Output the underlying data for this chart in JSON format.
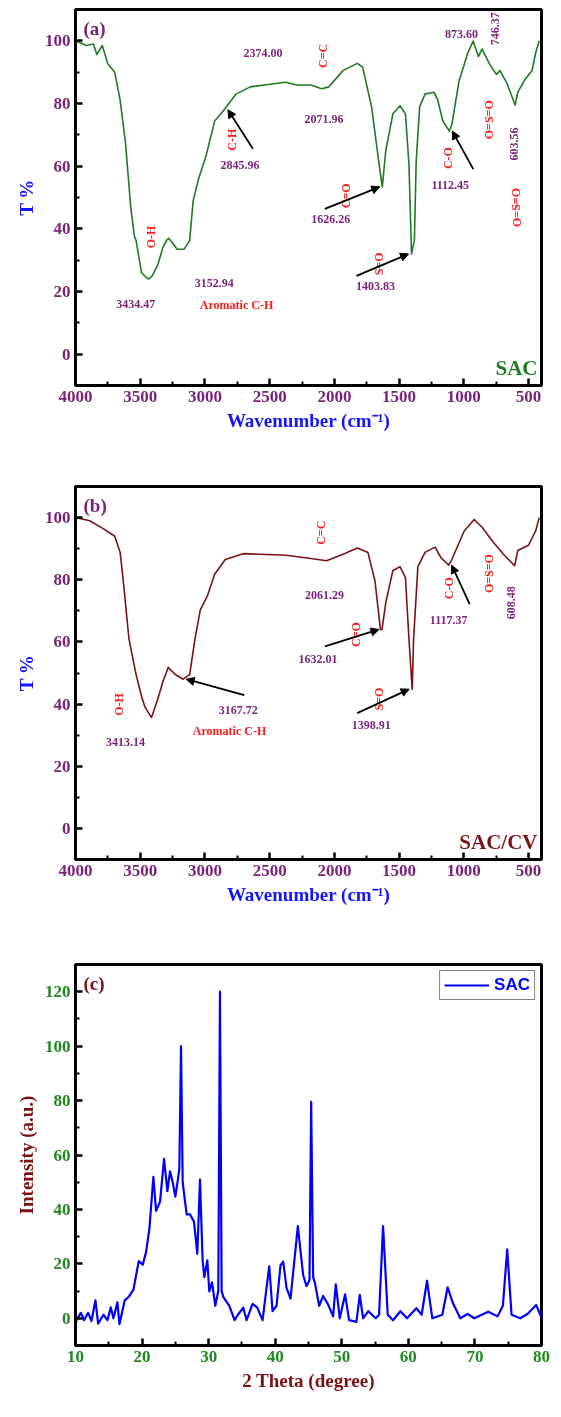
{
  "chart_data": [
    {
      "type": "line",
      "title": "(a)",
      "xlabel": "Wavenumber (cm⁻¹)",
      "ylabel": "T %",
      "xlim": [
        4000,
        400
      ],
      "ylim": [
        -10,
        110
      ],
      "xticks": [
        4000,
        3500,
        3000,
        2500,
        2000,
        1500,
        1000,
        500
      ],
      "yticks": [
        0,
        20,
        40,
        60,
        80,
        100
      ],
      "series": [
        {
          "name": "SAC",
          "color": "#1e7b1e",
          "x": [
            4000,
            3917,
            3862,
            3835,
            3793,
            3752,
            3697,
            3655,
            3614,
            3573,
            3545,
            3532,
            3490,
            3449,
            3434,
            3408,
            3366,
            3325,
            3297,
            3280,
            3256,
            3215,
            3160,
            3118,
            3091,
            3049,
            2994,
            2925,
            2856,
            2760,
            2650,
            2484,
            2374,
            2292,
            2181,
            2099,
            2044,
            1933,
            1823,
            1782,
            1713,
            1658,
            1630,
            1603,
            1548,
            1493,
            1451,
            1424,
            1404,
            1382,
            1368,
            1341,
            1300,
            1231,
            1203,
            1162,
            1112,
            1093,
            1038,
            969,
            928,
            887,
            859,
            804,
            749,
            721,
            666,
            604,
            583,
            528,
            473,
            445,
            418
          ],
          "values": [
            100,
            98.5,
            99,
            95.6,
            98.5,
            92.8,
            90,
            81,
            67.5,
            46.8,
            37.6,
            36.3,
            26,
            24.3,
            24,
            25,
            28.3,
            34,
            36.3,
            37,
            35.8,
            33.5,
            33.5,
            36.3,
            49,
            56,
            62.9,
            74.4,
            77.8,
            83,
            85.3,
            86.2,
            86.8,
            85.9,
            85.9,
            84.7,
            85.3,
            90.5,
            92.8,
            91.6,
            79,
            61.7,
            53.4,
            65,
            76.7,
            79.3,
            76.7,
            60.6,
            32,
            36.3,
            61.7,
            79,
            83,
            83.6,
            81.3,
            74.4,
            71.2,
            73.2,
            87,
            96.2,
            99.9,
            95,
            97.4,
            92.8,
            89.3,
            90.5,
            86.4,
            79.5,
            83.6,
            87.6,
            90.5,
            96.2,
            100
          ]
        }
      ],
      "annotations": [
        {
          "text": "O-H",
          "x": 3434.47,
          "y": 24
        },
        {
          "text": "3434.47",
          "x": 3434.47,
          "y": 24
        },
        {
          "text": "3152.94",
          "x": 3152.94,
          "y": 33.5
        },
        "Aromatic C-H",
        {
          "text": "C-H",
          "x": 2845.96,
          "y": 78
        },
        {
          "text": "2845.96",
          "x": 2845.96,
          "y": 78
        },
        {
          "text": "2374.00",
          "x": 2374.0,
          "y": 86.8
        },
        {
          "text": "C=C",
          "x": 2071.96,
          "y": 85
        },
        {
          "text": "2071.96",
          "x": 2071.96,
          "y": 85
        },
        {
          "text": "1626.26",
          "x": 1626.26,
          "y": 53.4
        },
        {
          "text": "C=O",
          "x": 1626.26,
          "y": 53.4
        },
        {
          "text": "1403.83",
          "x": 1403.83,
          "y": 32
        },
        {
          "text": "S=O",
          "x": 1403.83,
          "y": 32
        },
        {
          "text": "C-O",
          "x": 1112.45,
          "y": 71.2
        },
        {
          "text": "1112.45",
          "x": 1112.45,
          "y": 71.2
        },
        "873.60",
        {
          "text": "746.37",
          "x": 746.37,
          "y": 89.5
        },
        {
          "text": "O=S=O",
          "x": 746.37,
          "y": 89.5
        },
        {
          "text": "603.56",
          "x": 603.56,
          "y": 79.5
        },
        "O=S=O"
      ]
    },
    {
      "type": "line",
      "title": "(b)",
      "xlabel": "Wavenumber (cm⁻¹)",
      "ylabel": "T %",
      "xlim": [
        4000,
        400
      ],
      "ylim": [
        -10,
        110
      ],
      "xticks": [
        4000,
        3500,
        3000,
        2500,
        2000,
        1500,
        1000,
        500
      ],
      "yticks": [
        0,
        20,
        40,
        60,
        80,
        100
      ],
      "series": [
        {
          "name": "SAC/CV",
          "color": "#7a1212",
          "x": [
            4000,
            3890,
            3780,
            3697,
            3655,
            3628,
            3587,
            3532,
            3490,
            3463,
            3421,
            3413,
            3366,
            3325,
            3284,
            3229,
            3168,
            3118,
            3077,
            3036,
            2980,
            2925,
            2843,
            2705,
            2374,
            2209,
            2061,
            1933,
            1823,
            1741,
            1686,
            1644,
            1632,
            1603,
            1548,
            1493,
            1451,
            1424,
            1399,
            1388,
            1355,
            1300,
            1222,
            1175,
            1117,
            1093,
            997,
            920,
            859,
            777,
            694,
            608,
            583,
            501,
            445,
            418
          ],
          "values": [
            100,
            99,
            96.3,
            94,
            88.8,
            78.4,
            61,
            49.5,
            42.5,
            39,
            36.2,
            35.7,
            41.4,
            47.2,
            51.8,
            49.5,
            48,
            49.5,
            61,
            70.3,
            74.9,
            81.8,
            86.5,
            88.4,
            87.9,
            87,
            86.1,
            88.2,
            90.2,
            88.8,
            79.5,
            63.9,
            64,
            72.6,
            83,
            84.2,
            80.7,
            61,
            44.8,
            61,
            84.2,
            88.8,
            90.5,
            87,
            84.7,
            86.5,
            95.7,
            99.4,
            96.9,
            92.3,
            88.2,
            84.5,
            89.4,
            91.1,
            95.7,
            100
          ]
        }
      ],
      "annotations": [
        {
          "text": "O-H",
          "x": 3413.14,
          "y": 35.7
        },
        {
          "text": "3413.14",
          "x": 3413.14,
          "y": 35.7
        },
        {
          "text": "3167.72",
          "x": 3167.72,
          "y": 48
        },
        "Aromatic C-H",
        {
          "text": "C=C",
          "x": 2061.29,
          "y": 86.1
        },
        {
          "text": "2061.29",
          "x": 2061.29,
          "y": 86.1
        },
        {
          "text": "1632.01",
          "x": 1632.01,
          "y": 64
        },
        {
          "text": "C=O",
          "x": 1632.01,
          "y": 64
        },
        {
          "text": "1398.91",
          "x": 1398.91,
          "y": 44.8
        },
        {
          "text": "S=O",
          "x": 1398.91,
          "y": 44.8
        },
        {
          "text": "C-O",
          "x": 1117.37,
          "y": 84.7
        },
        {
          "text": "1117.37",
          "x": 1117.37,
          "y": 84.7
        },
        {
          "text": "O=S=O",
          "x": 746,
          "y": 91
        },
        {
          "text": "608.48",
          "x": 608.48,
          "y": 84.5
        }
      ]
    },
    {
      "type": "line",
      "title": "(c)",
      "xlabel": "2 Theta (degree)",
      "ylabel": "Intensity (a.u.)",
      "xlim": [
        10,
        80
      ],
      "ylim": [
        -10,
        130
      ],
      "xticks": [
        10,
        20,
        30,
        40,
        50,
        60,
        70,
        80
      ],
      "yticks": [
        0,
        20,
        40,
        60,
        80,
        100,
        120
      ],
      "legend": "top right",
      "series": [
        {
          "name": "SAC",
          "color": "#0000ff",
          "x": [
            10,
            10.8,
            11.3,
            11.9,
            12.4,
            13.0,
            13.4,
            14.2,
            14.8,
            15.3,
            15.7,
            16.3,
            16.6,
            17.4,
            18.0,
            18.7,
            19.5,
            20.1,
            20.6,
            21.1,
            21.7,
            22.1,
            22.7,
            23.3,
            23.8,
            24.2,
            24.6,
            25.0,
            25.4,
            25.6,
            25.85,
            26.1,
            26.3,
            26.7,
            27.2,
            27.8,
            28.3,
            28.7,
            29.1,
            29.35,
            29.8,
            30.1,
            30.5,
            31.0,
            31.45,
            31.7,
            31.95,
            32.2,
            33.1,
            33.9,
            34.4,
            35.2,
            35.7,
            36.6,
            37.3,
            38.1,
            39.1,
            39.6,
            40.2,
            40.8,
            41.2,
            41.7,
            42.3,
            43.4,
            44.2,
            44.7,
            45.15,
            45.4,
            45.7,
            45.95,
            46.6,
            47.2,
            47.9,
            48.7,
            49.1,
            49.7,
            50.5,
            51.1,
            52.2,
            52.7,
            53.2,
            54.0,
            55.1,
            55.6,
            56.2,
            56.9,
            57.7,
            58.8,
            59.8,
            61.2,
            62.0,
            62.8,
            63.6,
            65.1,
            65.9,
            66.7,
            67.8,
            68.9,
            69.9,
            72.0,
            73.4,
            74.2,
            74.85,
            75.5,
            76.8,
            77.9,
            79.2,
            80
          ],
          "values": [
            -1.3,
            2,
            -0.7,
            2,
            -1,
            6.6,
            -2,
            1.3,
            -0.7,
            4,
            0,
            5.9,
            -2.2,
            6.6,
            7.9,
            10.5,
            21,
            19.7,
            24.3,
            32.9,
            52,
            39.5,
            42.8,
            58.6,
            46.7,
            54,
            50,
            44.7,
            51.3,
            55,
            100,
            50,
            46,
            38.2,
            38.2,
            35.5,
            23.7,
            51,
            21,
            15.1,
            21.3,
            9.9,
            13.2,
            4.6,
            10,
            120,
            10,
            7.9,
            4.6,
            -0.7,
            1.3,
            3.9,
            -0.7,
            5.3,
            3.9,
            -0.7,
            19.1,
            2.6,
            4.6,
            19.5,
            20.8,
            11.2,
            7.2,
            33.9,
            15.8,
            11.8,
            14,
            79.5,
            15,
            13.2,
            4.6,
            8.2,
            5.3,
            0.7,
            12.5,
            0,
            8.8,
            -0.7,
            -1.3,
            8.6,
            0,
            2.6,
            0,
            1.3,
            33.9,
            1.3,
            -0.7,
            2.6,
            0,
            3.7,
            1.3,
            13.8,
            0,
            1.3,
            11.4,
            5.5,
            0,
            1.6,
            0,
            2.4,
            0.7,
            4.6,
            25.3,
            1.3,
            0,
            1.6,
            4.9,
            0.3
          ]
        }
      ]
    }
  ]
}
